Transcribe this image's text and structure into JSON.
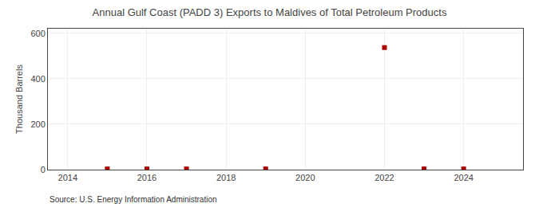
{
  "chart_data": {
    "type": "scatter",
    "title": "Annual Gulf Coast (PADD 3) Exports to Maldives of Total Petroleum Products",
    "ylabel": "Thousand Barrels",
    "annotations": [
      "Source: U.S. Energy Information Administration"
    ],
    "x": [
      2015,
      2016,
      2017,
      2019,
      2022,
      2023,
      2024
    ],
    "values": [
      3,
      3,
      3,
      3,
      537,
      3,
      3
    ],
    "color": "#aa0000",
    "marker": "square",
    "xlim": [
      2013.5,
      2025.5
    ],
    "xticks": [
      2014,
      2016,
      2018,
      2020,
      2022,
      2024
    ],
    "ylim": [
      0,
      620
    ],
    "yticks": [
      0,
      200,
      400,
      600
    ],
    "grid": true
  }
}
